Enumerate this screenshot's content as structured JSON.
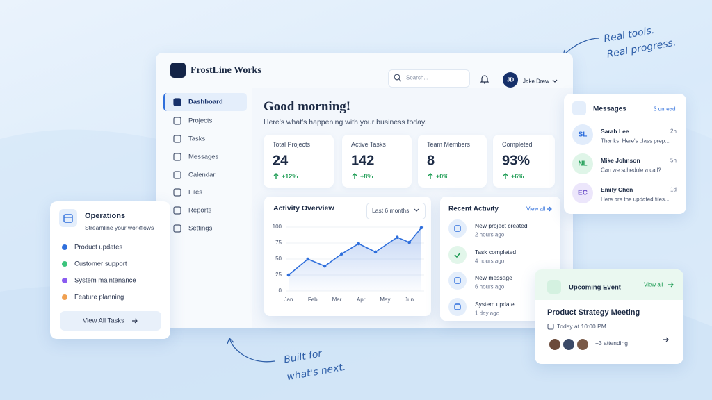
{
  "taglines": {
    "top": [
      "Real tools.",
      "Real progress."
    ],
    "bottom": [
      "Built for",
      "what's next."
    ]
  },
  "header": {
    "brand": "FrostLine Works",
    "search_placeholder": "Search...",
    "user_initials": "JD",
    "user_name": "Jake Drew"
  },
  "nav": {
    "active": 0,
    "items": [
      "Dashboard",
      "Projects",
      "Tasks",
      "Messages",
      "Calendar",
      "Files",
      "Reports",
      "Settings"
    ]
  },
  "greeting": {
    "title": "Good morning!",
    "subtitle": "Here's what's happening with your business today."
  },
  "stats": [
    {
      "label": "Total Projects",
      "value": "24",
      "change": "+12%"
    },
    {
      "label": "Active Tasks",
      "value": "142",
      "change": "+8%"
    },
    {
      "label": "Team Members",
      "value": "8",
      "change": "+0%"
    },
    {
      "label": "Completed",
      "value": "93%",
      "change": "+6%"
    }
  ],
  "activity_overview": {
    "title": "Activity Overview",
    "range": "Last 6 months",
    "chart": {
      "type": "line",
      "color": "#2f6fdc",
      "x": [
        0,
        0.8,
        1.5,
        2.2,
        2.9,
        3.6,
        4.5,
        5,
        5.5
      ],
      "values": [
        25,
        50,
        39,
        58,
        74,
        61,
        84,
        76,
        99
      ],
      "xlim": [
        0,
        5.5
      ],
      "ylim": [
        0,
        100
      ],
      "xticks": [
        {
          "value": 0,
          "label": "Jan"
        },
        {
          "value": 1,
          "label": "Feb"
        },
        {
          "value": 2,
          "label": "Mar"
        },
        {
          "value": 3,
          "label": "Apr"
        },
        {
          "value": 4,
          "label": "May"
        },
        {
          "value": 5,
          "label": "Jun"
        }
      ],
      "yticks": [
        0,
        25,
        50,
        75,
        100
      ],
      "grid": true
    }
  },
  "recent_activity": {
    "title": "Recent Activity",
    "link": "View all",
    "items": [
      {
        "title": "New project created",
        "time": "2 hours ago"
      },
      {
        "title": "Task completed",
        "time": "4 hours ago"
      },
      {
        "title": "New message",
        "time": "6 hours ago"
      },
      {
        "title": "System update",
        "time": "1 day ago"
      }
    ]
  },
  "messages": {
    "title": "Messages",
    "badge": "3 unread",
    "items": [
      {
        "initials": "SL",
        "name": "Sarah Lee",
        "time": "2h",
        "preview": "Thanks! Here's class prep..."
      },
      {
        "initials": "NL",
        "name": "Mike Johnson",
        "time": "5h",
        "preview": "Can we schedule a call?"
      },
      {
        "initials": "EC",
        "name": "Emily Chen",
        "time": "1d",
        "preview": "Here are the updated files..."
      }
    ]
  },
  "operations": {
    "title": "Operations",
    "subtitle": "Streamline your workflows",
    "items": [
      {
        "label": "Product updates",
        "color": "#2f6fdc"
      },
      {
        "label": "Customer support",
        "color": "#3cc47c"
      },
      {
        "label": "System maintenance",
        "color": "#8a5cf0"
      },
      {
        "label": "Feature planning",
        "color": "#f0a050"
      }
    ],
    "button": "View All Tasks"
  },
  "upcoming_event": {
    "title": "Upcoming Event",
    "link": "View all",
    "event": "Product Strategy Meeting",
    "time": "Today at 10:00 PM",
    "attending": "+3 attending"
  }
}
